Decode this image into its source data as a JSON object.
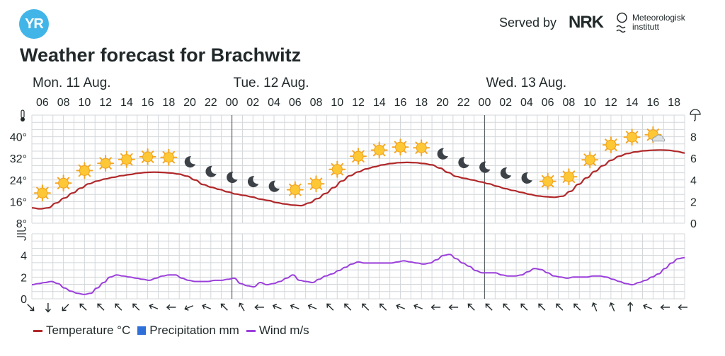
{
  "header": {
    "logo_text": "YR",
    "served_by": "Served by",
    "nrk_text": "NRK",
    "met_line1": "Meteorologisk",
    "met_line2": "institutt"
  },
  "page_title": "Weather forecast for Brachwitz",
  "legend": [
    {
      "label": "Temperature °C",
      "color": "#b0282a"
    },
    {
      "label": "Precipitation mm",
      "color": "#2f6fd8"
    },
    {
      "label": "Wind m/s",
      "color": "#9b3fdb"
    }
  ],
  "chart_data": {
    "type": "line",
    "days": [
      {
        "label": "Mon. 11 Aug.",
        "start_hour": 5
      },
      {
        "label": "Tue. 12 Aug.",
        "start_hour": 24
      },
      {
        "label": "Wed. 13 Aug.",
        "start_hour": 48
      }
    ],
    "hour_ticks": [
      "06",
      "08",
      "10",
      "12",
      "14",
      "16",
      "18",
      "20",
      "22",
      "00",
      "02",
      "04",
      "06",
      "08",
      "10",
      "12",
      "14",
      "16",
      "18",
      "20",
      "22",
      "00",
      "02",
      "04",
      "06",
      "08",
      "10",
      "12",
      "14",
      "16",
      "18"
    ],
    "x_start_hour": 5,
    "x_end_hour": 67,
    "temperature": {
      "name": "Temperature °C",
      "ylim": [
        8,
        48
      ],
      "tick_labels": [
        "8°",
        "16°",
        "24°",
        "32°",
        "40°"
      ],
      "tick_values": [
        8,
        16,
        24,
        32,
        40
      ],
      "values": [
        13.7,
        13.3,
        13.7,
        15.5,
        17.3,
        19.2,
        21,
        22.6,
        23.6,
        24.4,
        25,
        25.6,
        26,
        26.5,
        26.8,
        26.9,
        26.8,
        26.6,
        26.2,
        25.4,
        24,
        22.3,
        21.3,
        20.5,
        19.6,
        18.8,
        18.3,
        17.7,
        16.9,
        16.4,
        15.6,
        15.1,
        14.7,
        14.5,
        15.5,
        17.1,
        19,
        21.2,
        23.6,
        25.6,
        27,
        28.1,
        28.9,
        29.6,
        30.1,
        30.4,
        30.5,
        30.4,
        30.1,
        29.6,
        28.4,
        26.8,
        25.3,
        24.6,
        24,
        23.3,
        22.6,
        21.7,
        20.8,
        20.1,
        19.4,
        18.7,
        18.1,
        17.8,
        17.6,
        18,
        19.8,
        22.4,
        24.8,
        27.2,
        29.3,
        31.3,
        32.8,
        33.8,
        34.4,
        34.8,
        35,
        35.1,
        35,
        34.6,
        34
      ]
    },
    "precipitation": {
      "name": "Precipitation mm",
      "ylim": [
        0,
        10
      ],
      "tick_labels": [
        "0",
        "2",
        "4",
        "6",
        "8"
      ],
      "tick_values": [
        0,
        2,
        4,
        6,
        8
      ]
    },
    "wind": {
      "name": "Wind m/s",
      "ylim": [
        0,
        6
      ],
      "tick_labels": [
        "0",
        "2",
        "4"
      ],
      "tick_values": [
        0,
        2,
        4
      ],
      "values": [
        1.3,
        1.4,
        1.5,
        1.6,
        1.4,
        1,
        0.7,
        0.5,
        0.4,
        0.5,
        1,
        1.5,
        2,
        2.2,
        2.1,
        2,
        1.9,
        1.8,
        1.7,
        1.9,
        2.1,
        2.2,
        2.2,
        1.9,
        1.7,
        1.6,
        1.6,
        1.6,
        1.7,
        1.7,
        1.8,
        1.9,
        1.4,
        1.2,
        1.1,
        1.5,
        1.3,
        1.4,
        1.6,
        1.9,
        2.2,
        1.7,
        1.6,
        1.5,
        1.8,
        2.1,
        2.3,
        2.6,
        2.9,
        3.2,
        3.4,
        3.3,
        3.3,
        3.3,
        3.3,
        3.3,
        3.4,
        3.5,
        3.4,
        3.3,
        3.2,
        3.3,
        3.6,
        4,
        4.1,
        3.7,
        3.3,
        3,
        2.6,
        2.4,
        2.4,
        2.4,
        2.2,
        2.1,
        2.1,
        2.2,
        2.5,
        2.8,
        2.7,
        2.4,
        2.1,
        2,
        1.9,
        2,
        2,
        2,
        2.1,
        2.1,
        2,
        1.8,
        1.6,
        1.4,
        1.3,
        1.5,
        1.7,
        2,
        2.3,
        2.8,
        3.3,
        3.7,
        3.8
      ]
    },
    "symbols": [
      {
        "hour": 6,
        "icon": "sun"
      },
      {
        "hour": 8,
        "icon": "sun"
      },
      {
        "hour": 10,
        "icon": "sun"
      },
      {
        "hour": 12,
        "icon": "sun"
      },
      {
        "hour": 14,
        "icon": "sun"
      },
      {
        "hour": 16,
        "icon": "sun"
      },
      {
        "hour": 18,
        "icon": "sun"
      },
      {
        "hour": 20,
        "icon": "moon"
      },
      {
        "hour": 22,
        "icon": "moon"
      },
      {
        "hour": 24,
        "icon": "moon"
      },
      {
        "hour": 26,
        "icon": "moon"
      },
      {
        "hour": 28,
        "icon": "moon"
      },
      {
        "hour": 30,
        "icon": "sun"
      },
      {
        "hour": 32,
        "icon": "sun"
      },
      {
        "hour": 34,
        "icon": "sun"
      },
      {
        "hour": 36,
        "icon": "sun"
      },
      {
        "hour": 38,
        "icon": "sun"
      },
      {
        "hour": 40,
        "icon": "sun"
      },
      {
        "hour": 42,
        "icon": "sun"
      },
      {
        "hour": 44,
        "icon": "moon"
      },
      {
        "hour": 46,
        "icon": "moon"
      },
      {
        "hour": 48,
        "icon": "moon"
      },
      {
        "hour": 50,
        "icon": "moon"
      },
      {
        "hour": 52,
        "icon": "moon"
      },
      {
        "hour": 54,
        "icon": "sun"
      },
      {
        "hour": 56,
        "icon": "sun"
      },
      {
        "hour": 58,
        "icon": "sun"
      },
      {
        "hour": 60,
        "icon": "sun"
      },
      {
        "hour": 62,
        "icon": "sun"
      },
      {
        "hour": 64,
        "icon": "sun-cloud"
      }
    ],
    "wind_directions_deg": [
      315,
      0,
      45,
      135,
      135,
      135,
      135,
      112,
      90,
      68,
      112,
      135,
      150,
      90,
      112,
      112,
      112,
      135,
      135,
      135,
      135,
      112,
      112,
      90,
      90,
      135,
      135,
      135,
      135,
      135,
      135,
      135,
      157,
      157,
      180,
      112,
      90,
      90
    ]
  }
}
